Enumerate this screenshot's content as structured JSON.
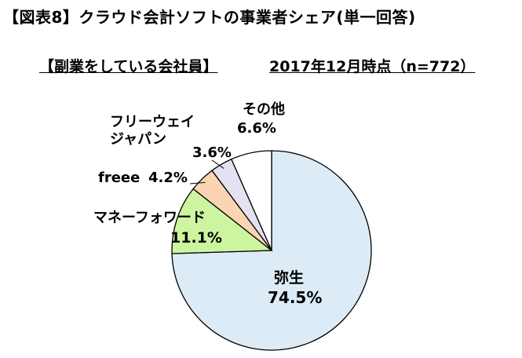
{
  "title": "【図表8】クラウド会計ソフトの事業者シェア(単一回答)",
  "subtitle": "【副業をしている会社員】",
  "as_of": "2017年12月時点（n=772）",
  "chart_data": {
    "type": "pie",
    "start": "12 o'clock",
    "direction": "clockwise",
    "slices": [
      {
        "name": "弥生",
        "value": 74.5,
        "value_label": "74.5%",
        "color": "#dcebf5"
      },
      {
        "name": "マネーフォワード",
        "value": 11.1,
        "value_label": "11.1%",
        "color": "#cdf5a0"
      },
      {
        "name": "freee",
        "value": 4.2,
        "value_label": "4.2%",
        "color": "#fbd5b3"
      },
      {
        "name": "フリーウェイジャパン",
        "name_lines": [
          "フリーウェイ",
          "ジャパン"
        ],
        "value": 3.6,
        "value_label": "3.6%",
        "color": "#e4e1f0"
      },
      {
        "name": "その他",
        "value": 6.6,
        "value_label": "6.6%",
        "color": "#ffffff"
      }
    ]
  }
}
